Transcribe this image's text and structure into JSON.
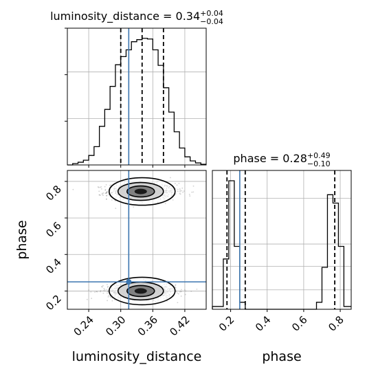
{
  "chart_data": [
    {
      "type": "histogram",
      "panel": "top-left",
      "title_base": "luminosity_distance = 0.34",
      "title_sup": "+0.04",
      "title_sub": "−0.04",
      "xlim": [
        0.2,
        0.46
      ],
      "bin_edges": [
        0.2,
        0.21,
        0.22,
        0.23,
        0.24,
        0.25,
        0.26,
        0.27,
        0.28,
        0.29,
        0.3,
        0.31,
        0.32,
        0.33,
        0.34,
        0.35,
        0.36,
        0.37,
        0.38,
        0.39,
        0.4,
        0.41,
        0.42,
        0.43,
        0.44,
        0.45,
        0.46
      ],
      "counts": [
        0,
        2,
        4,
        7,
        14,
        27,
        57,
        82,
        116,
        148,
        160,
        170,
        182,
        185,
        187,
        186,
        170,
        147,
        114,
        78,
        49,
        25,
        12,
        6,
        3,
        1
      ],
      "quantile_lines": [
        0.3,
        0.34,
        0.38
      ],
      "truth": 0.315
    },
    {
      "type": "scatter",
      "panel": "bottom-left",
      "xlabel": "luminosity_distance",
      "ylabel": "phase",
      "xlim": [
        0.2,
        0.46
      ],
      "ylim": [
        0.1,
        0.86
      ],
      "xticks": [
        "0.24",
        "0.30",
        "0.36",
        "0.42"
      ],
      "yticks": [
        "0.2",
        "0.4",
        "0.6",
        "0.8"
      ],
      "mode_centers": [
        {
          "x": 0.34,
          "y": 0.745
        },
        {
          "x": 0.34,
          "y": 0.2
        }
      ],
      "truth": {
        "x": 0.315,
        "y": 0.25
      }
    },
    {
      "type": "histogram",
      "panel": "bottom-right",
      "title_base": "phase = 0.28",
      "title_sup": "+0.49",
      "title_sub": "−0.10",
      "xlabel": "phase",
      "xlim": [
        0.1,
        0.86
      ],
      "xticks": [
        "0.2",
        "0.4",
        "0.6",
        "0.8"
      ],
      "bin_edges": [
        0.1,
        0.13,
        0.16,
        0.19,
        0.22,
        0.25,
        0.28,
        0.31,
        0.34,
        0.37,
        0.4,
        0.43,
        0.46,
        0.49,
        0.52,
        0.55,
        0.58,
        0.61,
        0.64,
        0.67,
        0.7,
        0.73,
        0.76,
        0.79,
        0.82,
        0.85,
        0.86
      ],
      "counts": [
        2,
        2,
        36,
        92,
        45,
        5,
        0,
        0,
        0,
        0,
        0,
        0,
        0,
        0,
        0,
        0,
        0,
        0,
        0,
        5,
        30,
        82,
        76,
        45,
        2,
        2
      ],
      "quantile_lines": [
        0.18,
        0.28,
        0.77
      ],
      "truth": 0.25
    }
  ]
}
